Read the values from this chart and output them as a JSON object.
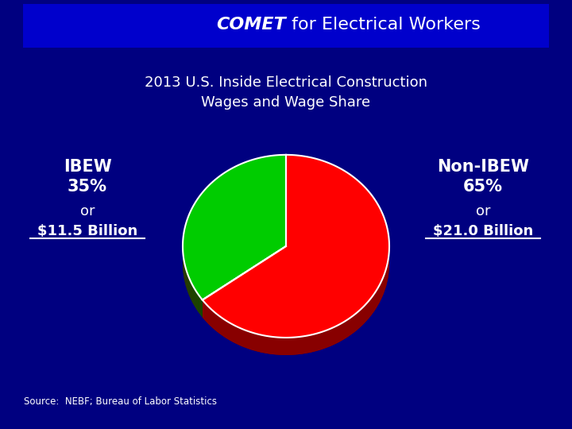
{
  "title_bold": "COMET",
  "title_regular": " for Electrical Workers",
  "subtitle": "2013 U.S. Inside Electrical Construction\nWages and Wage Share",
  "pie_values": [
    35,
    65
  ],
  "ibew_color": "#00cc00",
  "nonibew_color": "#ff0000",
  "ibew_shadow_color": "#005500",
  "nonibew_shadow_color": "#880000",
  "left_label_top": "IBEW\n35%",
  "left_label_mid": "or",
  "left_label_bot": "$11.5 Billion",
  "right_label_top": "Non-IBEW\n65%",
  "right_label_mid": "or",
  "right_label_bot": "$21.0 Billion",
  "source_text": "Source:  NEBF; Bureau of Labor Statistics",
  "bg_color": "#000080",
  "text_color": "#ffffff",
  "header_blue": "#0000cc",
  "header_red": "#cc0000"
}
